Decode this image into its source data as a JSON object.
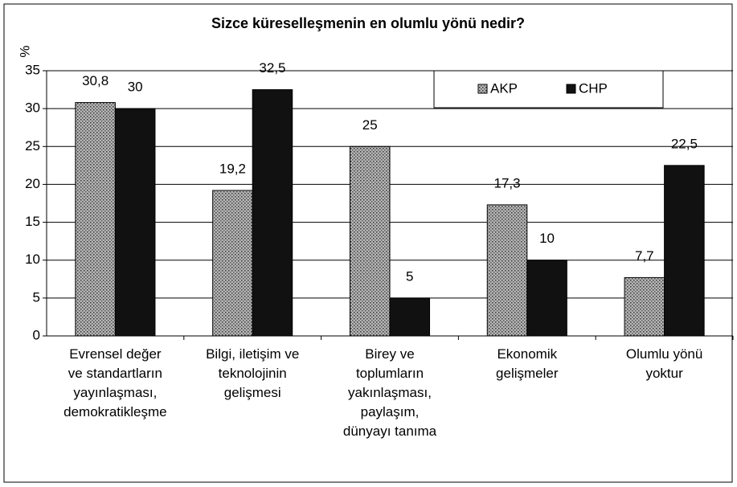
{
  "chart_data": {
    "type": "bar",
    "title": "Sizce küreselleşmenin en olumlu yönü nedir?",
    "y_label": "%",
    "categories": [
      "Evrensel değer\nve standartların\nyayınlaşması,\ndemokratikleşme",
      "Bilgi, iletişim ve\nteknolojinin\ngelişmesi",
      "Birey ve\ntoplumların\nyakınlaşması,\npaylaşım,\ndünyayı tanıma",
      "Ekonomik\ngelişmeler",
      "Olumlu yönü\nyoktur"
    ],
    "series": [
      {
        "name": "AKP",
        "color": "#9a9a9a",
        "values": [
          30.8,
          19.2,
          25,
          17.3,
          7.7
        ],
        "value_labels": [
          "30,8",
          "19,2",
          "25",
          "17,3",
          "7,7"
        ]
      },
      {
        "name": "CHP",
        "color": "#111111",
        "values": [
          30,
          32.5,
          5,
          10,
          22.5
        ],
        "value_labels": [
          "30",
          "32,5",
          "5",
          "10",
          "22,5"
        ]
      }
    ],
    "ylim": [
      0,
      35
    ],
    "yticks": [
      0,
      5,
      10,
      15,
      20,
      25,
      30,
      35
    ],
    "grid": true,
    "legend": "upper right"
  }
}
